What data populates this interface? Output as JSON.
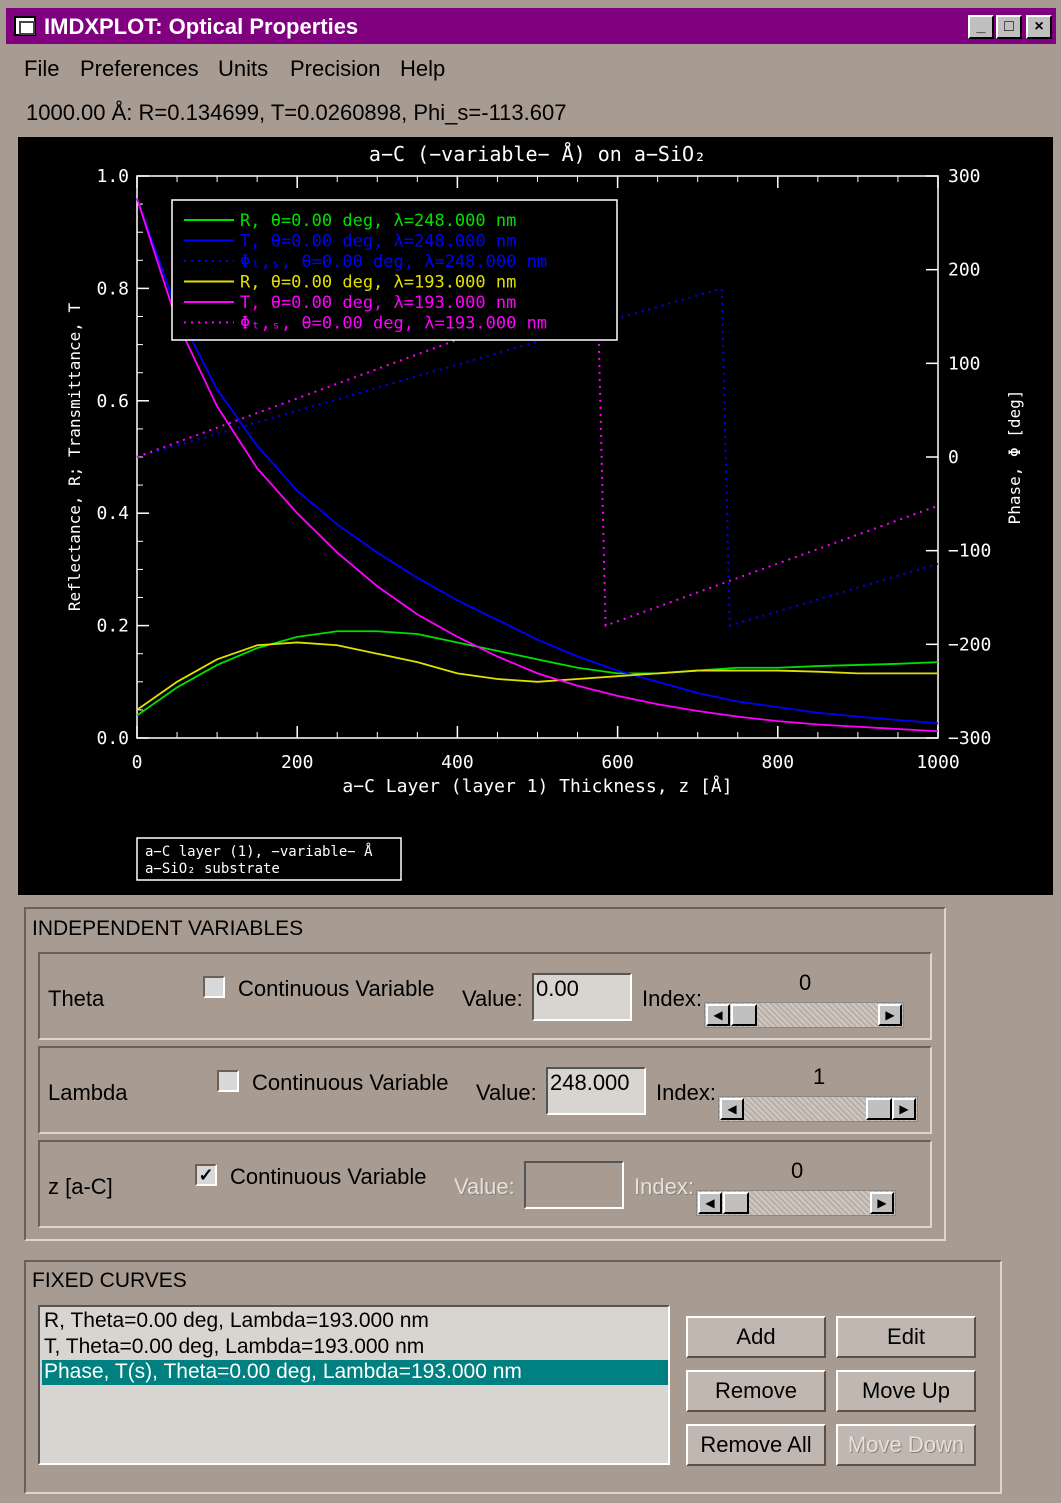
{
  "window": {
    "title": "IMDXPLOT: Optical Properties",
    "minimize_label": "_",
    "maximize_label": "□",
    "close_label": "×"
  },
  "menu": [
    "File",
    "Preferences",
    "Units",
    "Precision",
    "Help"
  ],
  "status_line": "1000.00 Å: R=0.134699, T=0.0260898, Phi_s=-113.607",
  "chart_data": {
    "type": "line",
    "title": "a−C (−variable− Å) on a−SiO₂",
    "xlabel": "a−C Layer (layer 1) Thickness, z [Å]",
    "ylabel": "Reflectance, R; Transmittance, T",
    "y2label": "Phase, Φ [deg]",
    "xlim": [
      0,
      1000
    ],
    "ylim": [
      0,
      1.0
    ],
    "y2lim": [
      -300,
      300
    ],
    "xticks": [
      "0",
      "200",
      "400",
      "600",
      "800",
      "1000"
    ],
    "yticks": [
      "0.0",
      "0.2",
      "0.4",
      "0.6",
      "0.8",
      "1.0"
    ],
    "y2ticks": [
      "−300",
      "−200",
      "−100",
      "0",
      "100",
      "200",
      "300"
    ],
    "grid": false,
    "legend_position": "top-left",
    "legend": [
      "R, θ=0.00 deg, λ=248.000 nm",
      "T, θ=0.00 deg, λ=248.000 nm",
      "Φₜ,ₛ, θ=0.00 deg, λ=248.000 nm",
      "R, θ=0.00 deg, λ=193.000 nm",
      "T, θ=0.00 deg, λ=193.000 nm",
      "Φₜ,ₛ, θ=0.00 deg, λ=193.000 nm"
    ],
    "annotation": [
      "a−C layer (1), −variable− Å",
      "a−SiO₂ substrate"
    ],
    "series": [
      {
        "name": "R, θ=0.00 deg, λ=248.000 nm",
        "color": "#00e000",
        "style": "solid",
        "axis": "left",
        "x": [
          0,
          50,
          100,
          150,
          200,
          250,
          300,
          350,
          400,
          450,
          500,
          550,
          600,
          650,
          700,
          750,
          800,
          850,
          900,
          950,
          1000
        ],
        "y": [
          0.04,
          0.09,
          0.13,
          0.16,
          0.18,
          0.19,
          0.19,
          0.185,
          0.17,
          0.155,
          0.14,
          0.125,
          0.115,
          0.115,
          0.12,
          0.125,
          0.125,
          0.128,
          0.13,
          0.132,
          0.135
        ]
      },
      {
        "name": "T, θ=0.00 deg, λ=248.000 nm",
        "color": "#0000ff",
        "style": "solid",
        "axis": "left",
        "x": [
          0,
          50,
          100,
          150,
          200,
          250,
          300,
          350,
          400,
          450,
          500,
          550,
          600,
          650,
          700,
          750,
          800,
          850,
          900,
          950,
          1000
        ],
        "y": [
          0.96,
          0.76,
          0.62,
          0.52,
          0.44,
          0.38,
          0.33,
          0.285,
          0.245,
          0.21,
          0.175,
          0.145,
          0.12,
          0.1,
          0.08,
          0.065,
          0.055,
          0.045,
          0.038,
          0.032,
          0.026
        ]
      },
      {
        "name": "Φₜ,ₛ, θ=0.00 deg, λ=248.000 nm",
        "color": "#0000ff",
        "style": "dotted",
        "axis": "right",
        "x": [
          0,
          730,
          730,
          740,
          1000
        ],
        "y": [
          0,
          180,
          180,
          -180,
          -114
        ]
      },
      {
        "name": "R, θ=0.00 deg, λ=193.000 nm",
        "color": "#e0e000",
        "style": "solid",
        "axis": "left",
        "x": [
          0,
          50,
          100,
          150,
          200,
          250,
          300,
          350,
          400,
          450,
          500,
          550,
          600,
          650,
          700,
          750,
          800,
          850,
          900,
          950,
          1000
        ],
        "y": [
          0.05,
          0.1,
          0.14,
          0.165,
          0.17,
          0.165,
          0.15,
          0.135,
          0.115,
          0.105,
          0.1,
          0.105,
          0.11,
          0.115,
          0.12,
          0.12,
          0.12,
          0.118,
          0.115,
          0.115,
          0.115
        ]
      },
      {
        "name": "T, θ=0.00 deg, λ=193.000 nm",
        "color": "#ff00ff",
        "style": "solid",
        "axis": "left",
        "x": [
          0,
          50,
          100,
          150,
          200,
          250,
          300,
          350,
          400,
          450,
          500,
          550,
          600,
          650,
          700,
          750,
          800,
          850,
          900,
          950,
          1000
        ],
        "y": [
          0.96,
          0.74,
          0.59,
          0.48,
          0.4,
          0.33,
          0.27,
          0.22,
          0.18,
          0.145,
          0.115,
          0.093,
          0.075,
          0.06,
          0.048,
          0.038,
          0.03,
          0.024,
          0.02,
          0.016,
          0.012
        ]
      },
      {
        "name": "Φₜ,ₛ, θ=0.00 deg, λ=193.000 nm",
        "color": "#ff00ff",
        "style": "dotted",
        "axis": "right",
        "x": [
          0,
          575,
          575,
          585,
          1000
        ],
        "y": [
          0,
          180,
          180,
          -180,
          -52
        ]
      }
    ]
  },
  "independent": {
    "title": "INDEPENDENT VARIABLES",
    "rows": [
      {
        "label": "Theta",
        "continuous_label": "Continuous Variable",
        "checked": "",
        "value_label": "Value:",
        "value": "0.00",
        "index_label": "Index:",
        "index": "0",
        "slider_position": 0
      },
      {
        "label": "Lambda",
        "continuous_label": "Continuous Variable",
        "checked": "",
        "value_label": "Value:",
        "value": "248.000",
        "index_label": "Index:",
        "index": "1",
        "slider_position": 1
      },
      {
        "label": "z [a-C]",
        "continuous_label": "Continuous Variable",
        "checked": "✓",
        "value_label": "Value:",
        "value": "",
        "index_label": "Index:",
        "index": "0",
        "slider_position": 0
      }
    ]
  },
  "slider_arrows": {
    "left": "◀",
    "right": "▶"
  },
  "fixed": {
    "title": "FIXED CURVES",
    "items": [
      "R, Theta=0.00 deg, Lambda=193.000 nm",
      "T, Theta=0.00 deg, Lambda=193.000 nm",
      "Phase, T(s), Theta=0.00 deg, Lambda=193.000 nm"
    ],
    "selected_index": 2,
    "buttons": {
      "add": "Add",
      "edit": "Edit",
      "remove": "Remove",
      "move_up": "Move Up",
      "remove_all": "Remove All",
      "move_down": "Move Down"
    }
  }
}
